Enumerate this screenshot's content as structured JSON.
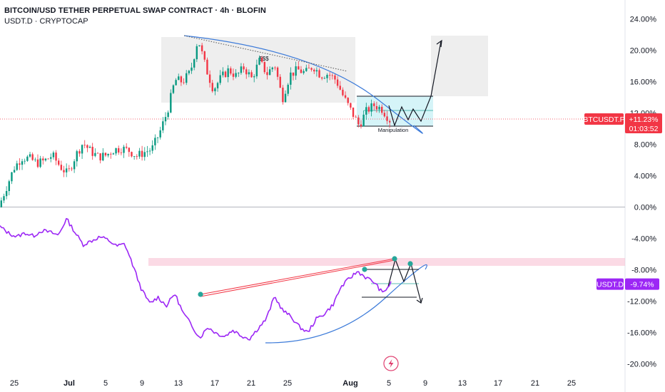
{
  "legend": {
    "title": "BITCOIN/USD TETHER PERPETUAL SWAP CONTRACT · 4h · BLOFIN",
    "subtitle": "USDT.D · CRYPTOCAP"
  },
  "chart_data": {
    "type": "line",
    "y_axis": {
      "ticks": [
        "24.00%",
        "20.00%",
        "16.00%",
        "12.00%",
        "8.00%",
        "4.00%",
        "0.00%",
        "-4.00%",
        "-8.00%",
        "-12.00%",
        "-16.00%",
        "-20.00%"
      ],
      "tick_values": [
        24,
        20,
        16,
        12,
        8,
        4,
        0,
        -4,
        -8,
        -12,
        -16,
        -20
      ],
      "range": [
        -20,
        24
      ]
    },
    "x_axis": {
      "ticks": [
        "25",
        "Jul",
        "5",
        "9",
        "13",
        "17",
        "21",
        "25",
        "Aug",
        "5",
        "9",
        "13",
        "17",
        "21",
        "25"
      ],
      "bold": [
        "Jul",
        "Aug"
      ]
    },
    "series": [
      {
        "symbol": "BTCUSDT.P",
        "type": "candlestick",
        "change": "+11.23%",
        "countdown": "01:03:52",
        "color_up": "#089981",
        "color_down": "#f23645",
        "price_line_value": 11.23,
        "path_values": [
          0,
          2.5,
          5,
          6.3,
          6.2,
          5.6,
          5.9,
          6.6,
          5.2,
          4.2,
          6.5,
          8.2,
          7.1,
          6.4,
          6.6,
          7.3,
          7.5,
          7.2,
          6.5,
          7.0,
          7.4,
          9.5,
          12.2,
          16.2,
          16.0,
          17.2,
          21.5,
          17.8,
          15.0,
          16.5,
          17.5,
          16.7,
          17.8,
          16.4,
          18.6,
          17.0,
          18.2,
          13.8,
          16.9,
          17.5,
          17.1,
          18.0,
          16.8,
          17.0,
          16.2,
          14.0,
          12.2,
          10.4,
          12.3,
          13.0,
          12.5,
          11.1
        ]
      },
      {
        "symbol": "USDT.D",
        "type": "line",
        "change": "-9.74%",
        "color": "#9c27f5",
        "path_values": [
          -2.5,
          -3.3,
          -3.8,
          -3.3,
          -3.7,
          -3.0,
          -3.2,
          -3.6,
          -1.5,
          -3.2,
          -4.8,
          -4.3,
          -3.8,
          -4.2,
          -5.0,
          -4.7,
          -7.5,
          -10.5,
          -12.3,
          -11.5,
          -12.6,
          -11.0,
          -13.5,
          -15.0,
          -16.7,
          -15.3,
          -16.1,
          -16.5,
          -15.7,
          -16.4,
          -16.8,
          -15.5,
          -14.3,
          -11.4,
          -13.2,
          -14.0,
          -15.3,
          -16.0,
          -14.3,
          -13.6,
          -12.5,
          -10.2,
          -9.1,
          -8.2,
          -9.0,
          -9.6,
          -11.0,
          -9.7
        ]
      }
    ],
    "annotations": {
      "labels": [
        "$$$",
        "Manipulation"
      ],
      "colors": {
        "box_gray": "#e0e0e0",
        "box_cyan": "#b2ebf2",
        "zone_red": "#f8bbd0",
        "trend_blue": "#3d7bd9",
        "trend_red": "#f23645",
        "marker_teal": "#26a69a"
      }
    }
  }
}
